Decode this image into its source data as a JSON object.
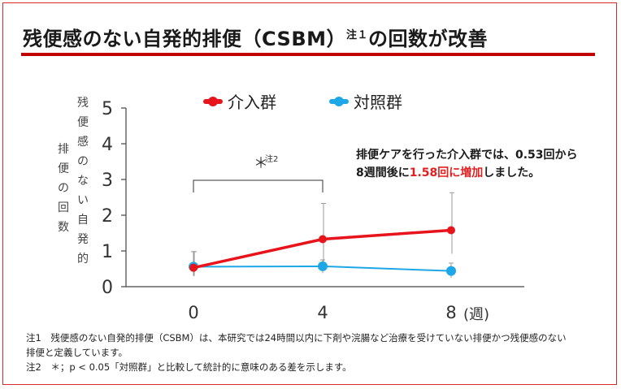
{
  "title": {
    "main": "残便感のない自発的排便（CSBM）",
    "note_ref": "注１",
    "suffix": "の回数が改善"
  },
  "colors": {
    "accent": "#c00000",
    "intervention": "#e8141b",
    "control": "#1ea7e6"
  },
  "yaxis_label_col1": [
    "残",
    "便",
    "感",
    "の",
    "な",
    "い",
    "自",
    "発",
    "的"
  ],
  "yaxis_label_col2": [
    "排",
    "便",
    "の",
    "回",
    "数"
  ],
  "significance": {
    "mark": "＊",
    "note": "注2"
  },
  "callout": {
    "line1": "排便ケアを行った介入群では、0.53回から",
    "line2_pre": "8週間後に",
    "line2_highlight": "1.58回に増加",
    "line2_post": "しました。"
  },
  "notes": {
    "note1_line1": "注1　残便感のない自発的排便（CSBM）は、本研究では24時間以内に下剤や浣腸など治療を受けていない排便かつ残便感のない",
    "note1_line2": "排便と定義しています。",
    "note2": "注2　＊；p < 0.05「対照群」と比較して統計的に意味のある差を示します。"
  },
  "chart_data": {
    "type": "line",
    "x": [
      0,
      4,
      8
    ],
    "x_tick_labels": [
      "0",
      "4",
      "8"
    ],
    "x_unit_label": "(週)",
    "ylim": [
      0,
      5
    ],
    "y_ticks": [
      0,
      1,
      2,
      3,
      4,
      5
    ],
    "legend_position": "top",
    "series": [
      {
        "name": "介入群",
        "color": "#e8141b",
        "values": [
          0.53,
          1.33,
          1.58
        ],
        "error_upper": [
          0.98,
          2.33,
          2.63
        ],
        "error_lower": [
          0.3,
          0.45,
          0.92
        ]
      },
      {
        "name": "対照群",
        "color": "#1ea7e6",
        "values": [
          0.56,
          0.57,
          0.44
        ],
        "error_upper": [
          0.98,
          0.75,
          0.66
        ],
        "error_lower": [
          0.3,
          0.38,
          0.25
        ]
      }
    ]
  }
}
